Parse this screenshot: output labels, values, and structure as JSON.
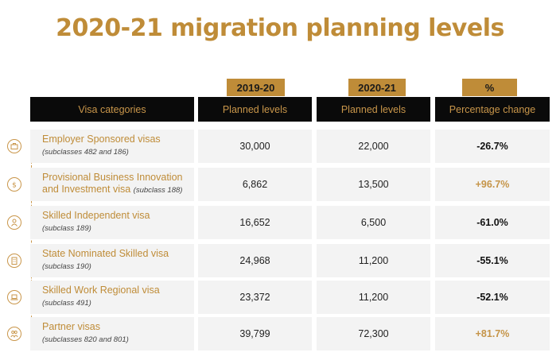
{
  "title": "2020-21 migration planning levels",
  "year_tags": [
    "2019-20",
    "2020-21",
    "%"
  ],
  "headers": [
    "Visa categories",
    "Planned levels",
    "Planned levels",
    "Percentage change"
  ],
  "colors": {
    "accent": "#bf8c38",
    "header_bg": "#0a0a0a",
    "row_bg": "#f3f3f3"
  },
  "rows": [
    {
      "icon": "briefcase-icon",
      "name": "Employer Sponsored visas",
      "name2": "",
      "sub": "(subclasses 482 and 186)",
      "v1920": "30,000",
      "v2021": "22,000",
      "change": "-26.7%",
      "dir": "neg"
    },
    {
      "icon": "dollar-icon",
      "name": "Provisional Business Innovation",
      "name2": "and Investment visa",
      "sub": "(subclass 188)",
      "v1920": "6,862",
      "v2021": "13,500",
      "change": "+96.7%",
      "dir": "pos"
    },
    {
      "icon": "person-icon",
      "name": "Skilled Independent visa",
      "name2": "",
      "sub": "(subclass 189)",
      "v1920": "16,652",
      "v2021": "6,500",
      "change": "-61.0%",
      "dir": "neg"
    },
    {
      "icon": "building-icon",
      "name": "State Nominated Skilled visa",
      "name2": "",
      "sub": "(subclass 190)",
      "v1920": "24,968",
      "v2021": "11,200",
      "change": "-55.1%",
      "dir": "neg"
    },
    {
      "icon": "laptop-icon",
      "name": "Skilled Work Regional visa",
      "name2": "",
      "sub": "(subclass 491)",
      "v1920": "23,372",
      "v2021": "11,200",
      "change": "-52.1%",
      "dir": "neg"
    },
    {
      "icon": "couple-icon",
      "name": "Partner visas",
      "name2": "",
      "sub": "(subclasses 820 and 801)",
      "v1920": "39,799",
      "v2021": "72,300",
      "change": "+81.7%",
      "dir": "pos"
    }
  ]
}
